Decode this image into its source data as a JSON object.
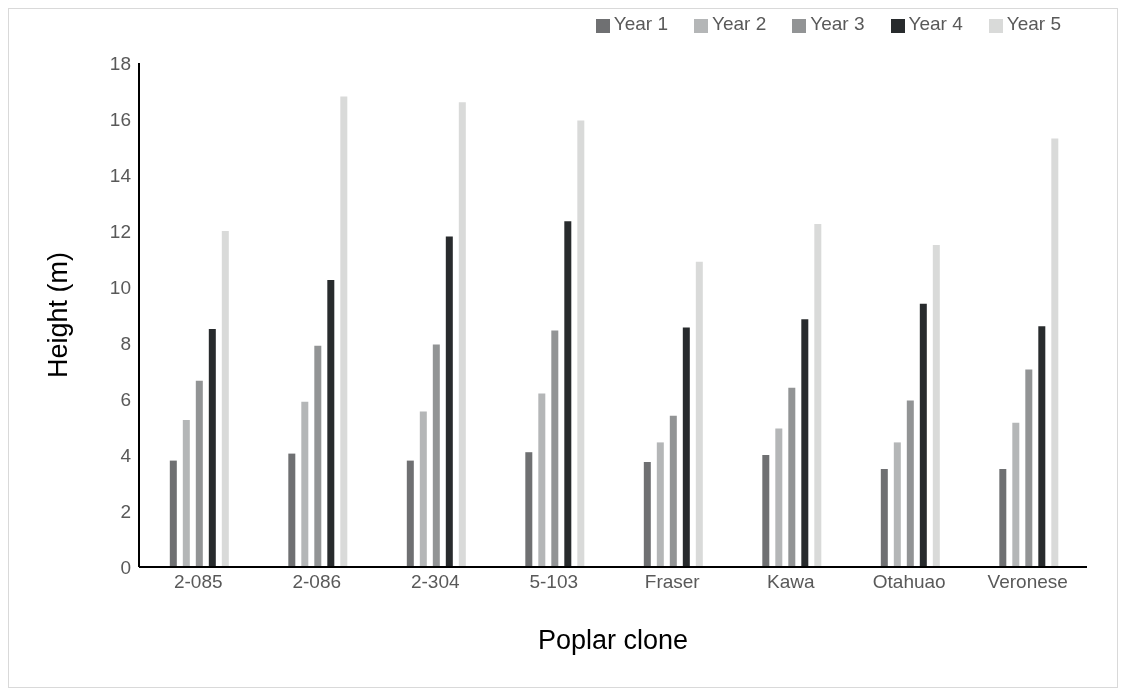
{
  "chart_data": {
    "type": "bar",
    "xlabel": "Poplar clone",
    "ylabel": "Height (m)",
    "categories": [
      "2-085",
      "2-086",
      "2-304",
      "5-103",
      "Fraser",
      "Kawa",
      "Otahuao",
      "Veronese"
    ],
    "series": [
      {
        "name": "Year 1",
        "color": "#6f7072",
        "values": [
          3.8,
          4.05,
          3.8,
          4.1,
          3.75,
          4.0,
          3.5,
          3.5
        ]
      },
      {
        "name": "Year 2",
        "color": "#b4b6b7",
        "values": [
          5.25,
          5.9,
          5.55,
          6.2,
          4.45,
          4.95,
          4.45,
          5.15
        ]
      },
      {
        "name": "Year 3",
        "color": "#929495",
        "values": [
          6.65,
          7.9,
          7.95,
          8.45,
          5.4,
          6.4,
          5.95,
          7.05
        ]
      },
      {
        "name": "Year 4",
        "color": "#282b2d",
        "values": [
          8.5,
          10.25,
          11.8,
          12.35,
          8.55,
          8.85,
          9.4,
          8.6
        ]
      },
      {
        "name": "Year 5",
        "color": "#d9dad9",
        "values": [
          12.0,
          16.8,
          16.6,
          15.95,
          10.9,
          12.25,
          11.5,
          15.3
        ]
      }
    ],
    "ylim": [
      0,
      18
    ],
    "yticks": [
      0,
      2,
      4,
      6,
      8,
      10,
      12,
      14,
      16,
      18
    ],
    "grid": false,
    "legend": "top right"
  }
}
